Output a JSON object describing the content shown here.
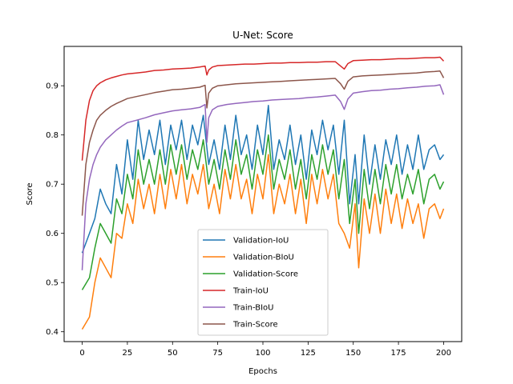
{
  "chart_data": {
    "type": "line",
    "title": "U-Net: Score",
    "xlabel": "Epochs",
    "ylabel": "Score",
    "xlim": [
      -10,
      210
    ],
    "ylim": [
      0.38,
      0.98
    ],
    "xticks": [
      0,
      25,
      50,
      75,
      100,
      125,
      150,
      175,
      200
    ],
    "xtick_labels": [
      "0",
      "25",
      "50",
      "75",
      "100",
      "125",
      "150",
      "175",
      "200"
    ],
    "yticks": [
      0.4,
      0.5,
      0.6,
      0.7,
      0.8,
      0.9
    ],
    "ytick_labels": [
      "0.4",
      "0.5",
      "0.6",
      "0.7",
      "0.8",
      "0.9"
    ],
    "grid": false,
    "legend_position": "lower-center",
    "series": [
      {
        "name": "Validation-IoU",
        "color": "#1f77b4",
        "x": [
          0,
          4,
          7,
          10,
          13,
          16,
          19,
          22,
          25,
          28,
          31,
          34,
          37,
          40,
          43,
          46,
          49,
          52,
          55,
          58,
          61,
          64,
          67,
          70,
          73,
          76,
          79,
          82,
          85,
          88,
          91,
          94,
          97,
          100,
          103,
          106,
          109,
          112,
          115,
          118,
          121,
          124,
          127,
          130,
          133,
          136,
          139,
          142,
          145,
          148,
          151,
          153,
          156,
          159,
          162,
          165,
          168,
          171,
          174,
          177,
          180,
          183,
          186,
          189,
          192,
          195,
          198,
          200
        ],
        "y": [
          0.56,
          0.6,
          0.63,
          0.69,
          0.66,
          0.64,
          0.74,
          0.68,
          0.79,
          0.71,
          0.83,
          0.75,
          0.81,
          0.76,
          0.83,
          0.74,
          0.82,
          0.77,
          0.83,
          0.75,
          0.82,
          0.78,
          0.84,
          0.74,
          0.79,
          0.73,
          0.82,
          0.75,
          0.84,
          0.76,
          0.8,
          0.73,
          0.82,
          0.76,
          0.86,
          0.73,
          0.79,
          0.75,
          0.82,
          0.74,
          0.8,
          0.71,
          0.81,
          0.76,
          0.83,
          0.77,
          0.82,
          0.72,
          0.83,
          0.66,
          0.76,
          0.66,
          0.8,
          0.7,
          0.78,
          0.71,
          0.79,
          0.74,
          0.8,
          0.72,
          0.78,
          0.73,
          0.8,
          0.73,
          0.77,
          0.78,
          0.75,
          0.76
        ]
      },
      {
        "name": "Validation-BIoU",
        "color": "#ff7f0e",
        "x": [
          0,
          4,
          7,
          10,
          13,
          16,
          19,
          22,
          25,
          28,
          31,
          34,
          37,
          40,
          43,
          46,
          49,
          52,
          55,
          58,
          61,
          64,
          67,
          70,
          73,
          76,
          79,
          82,
          85,
          88,
          91,
          94,
          97,
          100,
          103,
          106,
          109,
          112,
          115,
          118,
          121,
          124,
          127,
          130,
          133,
          136,
          139,
          142,
          145,
          148,
          151,
          153,
          156,
          159,
          162,
          165,
          168,
          171,
          174,
          177,
          180,
          183,
          186,
          189,
          192,
          195,
          198,
          200
        ],
        "y": [
          0.405,
          0.43,
          0.5,
          0.55,
          0.53,
          0.51,
          0.6,
          0.59,
          0.66,
          0.62,
          0.71,
          0.65,
          0.7,
          0.64,
          0.72,
          0.65,
          0.73,
          0.67,
          0.74,
          0.66,
          0.72,
          0.68,
          0.74,
          0.65,
          0.7,
          0.64,
          0.73,
          0.67,
          0.74,
          0.67,
          0.71,
          0.64,
          0.72,
          0.67,
          0.76,
          0.64,
          0.7,
          0.66,
          0.72,
          0.64,
          0.71,
          0.62,
          0.72,
          0.66,
          0.73,
          0.67,
          0.72,
          0.62,
          0.6,
          0.57,
          0.66,
          0.53,
          0.67,
          0.6,
          0.68,
          0.6,
          0.69,
          0.62,
          0.68,
          0.61,
          0.67,
          0.62,
          0.66,
          0.59,
          0.65,
          0.66,
          0.63,
          0.65
        ]
      },
      {
        "name": "Validation-Score",
        "color": "#2ca02c",
        "x": [
          0,
          4,
          7,
          10,
          13,
          16,
          19,
          22,
          25,
          28,
          31,
          34,
          37,
          40,
          43,
          46,
          49,
          52,
          55,
          58,
          61,
          64,
          67,
          70,
          73,
          76,
          79,
          82,
          85,
          88,
          91,
          94,
          97,
          100,
          103,
          106,
          109,
          112,
          115,
          118,
          121,
          124,
          127,
          130,
          133,
          136,
          139,
          142,
          145,
          148,
          151,
          153,
          156,
          159,
          162,
          165,
          168,
          171,
          174,
          177,
          180,
          183,
          186,
          189,
          192,
          195,
          198,
          200
        ],
        "y": [
          0.485,
          0.51,
          0.57,
          0.62,
          0.6,
          0.58,
          0.67,
          0.64,
          0.72,
          0.67,
          0.77,
          0.7,
          0.75,
          0.7,
          0.77,
          0.7,
          0.78,
          0.72,
          0.78,
          0.71,
          0.77,
          0.73,
          0.79,
          0.7,
          0.75,
          0.69,
          0.77,
          0.71,
          0.79,
          0.72,
          0.76,
          0.69,
          0.77,
          0.72,
          0.8,
          0.69,
          0.75,
          0.71,
          0.77,
          0.69,
          0.75,
          0.67,
          0.76,
          0.71,
          0.78,
          0.72,
          0.77,
          0.67,
          0.75,
          0.62,
          0.71,
          0.6,
          0.73,
          0.65,
          0.73,
          0.66,
          0.74,
          0.68,
          0.74,
          0.67,
          0.72,
          0.68,
          0.73,
          0.66,
          0.71,
          0.72,
          0.69,
          0.705
        ]
      },
      {
        "name": "Train-IoU",
        "color": "#d62728",
        "x": [
          0,
          2,
          4,
          6,
          8,
          10,
          13,
          16,
          19,
          22,
          25,
          30,
          35,
          40,
          45,
          50,
          55,
          60,
          65,
          68,
          69,
          70,
          72,
          75,
          80,
          85,
          90,
          95,
          100,
          105,
          110,
          115,
          120,
          125,
          130,
          135,
          140,
          143,
          145,
          147,
          150,
          155,
          160,
          165,
          170,
          175,
          180,
          185,
          190,
          195,
          198,
          200
        ],
        "y": [
          0.748,
          0.83,
          0.87,
          0.89,
          0.9,
          0.906,
          0.912,
          0.916,
          0.919,
          0.922,
          0.924,
          0.926,
          0.928,
          0.931,
          0.932,
          0.934,
          0.935,
          0.936,
          0.938,
          0.94,
          0.922,
          0.932,
          0.938,
          0.941,
          0.942,
          0.943,
          0.944,
          0.944,
          0.945,
          0.946,
          0.946,
          0.947,
          0.947,
          0.948,
          0.948,
          0.949,
          0.949,
          0.94,
          0.934,
          0.945,
          0.951,
          0.952,
          0.953,
          0.953,
          0.954,
          0.955,
          0.955,
          0.956,
          0.957,
          0.957,
          0.958,
          0.95
        ]
      },
      {
        "name": "Train-BIoU",
        "color": "#9467bd",
        "x": [
          0,
          2,
          4,
          6,
          8,
          10,
          13,
          16,
          19,
          22,
          25,
          30,
          35,
          40,
          45,
          50,
          55,
          60,
          65,
          68,
          69,
          70,
          72,
          75,
          80,
          85,
          90,
          95,
          100,
          105,
          110,
          115,
          120,
          125,
          130,
          135,
          140,
          143,
          145,
          147,
          150,
          155,
          160,
          165,
          170,
          175,
          180,
          185,
          190,
          195,
          198,
          200
        ],
        "y": [
          0.525,
          0.66,
          0.71,
          0.74,
          0.76,
          0.775,
          0.79,
          0.8,
          0.81,
          0.818,
          0.825,
          0.83,
          0.835,
          0.841,
          0.845,
          0.849,
          0.851,
          0.853,
          0.856,
          0.862,
          0.785,
          0.835,
          0.851,
          0.858,
          0.862,
          0.864,
          0.866,
          0.868,
          0.869,
          0.871,
          0.872,
          0.873,
          0.874,
          0.876,
          0.877,
          0.879,
          0.881,
          0.868,
          0.852,
          0.873,
          0.885,
          0.888,
          0.89,
          0.891,
          0.893,
          0.894,
          0.896,
          0.897,
          0.899,
          0.9,
          0.902,
          0.882
        ]
      },
      {
        "name": "Train-Score",
        "color": "#8c564b",
        "x": [
          0,
          2,
          4,
          6,
          8,
          10,
          13,
          16,
          19,
          22,
          25,
          30,
          35,
          40,
          45,
          50,
          55,
          60,
          65,
          68,
          69,
          70,
          72,
          75,
          80,
          85,
          90,
          95,
          100,
          105,
          110,
          115,
          120,
          125,
          130,
          135,
          140,
          143,
          145,
          147,
          150,
          155,
          160,
          165,
          170,
          175,
          180,
          185,
          190,
          195,
          198,
          200
        ],
        "y": [
          0.636,
          0.74,
          0.785,
          0.81,
          0.83,
          0.84,
          0.85,
          0.858,
          0.864,
          0.869,
          0.874,
          0.878,
          0.882,
          0.886,
          0.889,
          0.892,
          0.893,
          0.895,
          0.897,
          0.901,
          0.855,
          0.885,
          0.895,
          0.9,
          0.902,
          0.904,
          0.905,
          0.906,
          0.907,
          0.908,
          0.909,
          0.91,
          0.911,
          0.912,
          0.913,
          0.914,
          0.915,
          0.904,
          0.893,
          0.909,
          0.918,
          0.92,
          0.921,
          0.922,
          0.923,
          0.924,
          0.925,
          0.926,
          0.928,
          0.929,
          0.93,
          0.916
        ]
      }
    ]
  }
}
